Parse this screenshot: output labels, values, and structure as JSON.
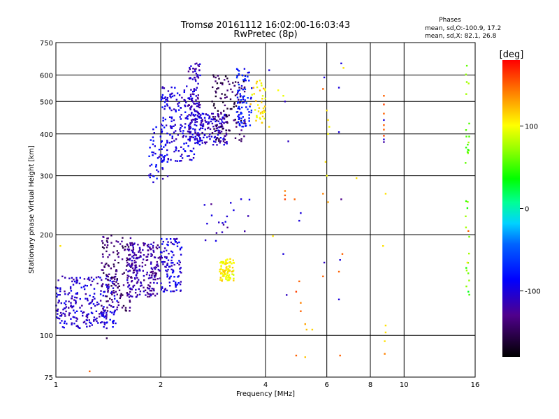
{
  "chart_data": {
    "type": "scatter",
    "title": "Tromsø 20161112 16:02:00-16:03:43",
    "subtitle": "RwPretec (8p)",
    "stats": {
      "heading": "Phases",
      "line1": "mean, sd,O:-100.9, 17.2",
      "line2": "mean, sd,X:  82.1, 26.8"
    },
    "xlabel": "Frequency [MHz]",
    "ylabel": "Stationary phase Virtual Height [km]",
    "x_scale": "log",
    "y_scale": "log",
    "xlim": [
      1,
      16
    ],
    "ylim": [
      75,
      750
    ],
    "x_ticks": [
      1,
      2,
      4,
      6,
      8,
      10,
      16
    ],
    "x_tick_labels": [
      "1",
      "2",
      "4",
      "6",
      "8",
      "10",
      "16"
    ],
    "y_ticks": [
      75,
      100,
      200,
      300,
      400,
      500,
      600,
      750
    ],
    "y_tick_labels": [
      "75",
      "100",
      "200",
      "300",
      "400",
      "500",
      "600",
      "750"
    ],
    "grid": true,
    "colorbar": {
      "label": "[deg]",
      "min": -180,
      "max": 180,
      "ticks": [
        100,
        0,
        -100
      ],
      "tick_labels": [
        "100",
        "0",
        "-100"
      ]
    },
    "clusters": [
      {
        "x": [
          1.0,
          1.5
        ],
        "y": [
          105,
          150
        ],
        "phase": -105,
        "n": 260
      },
      {
        "x": [
          1.35,
          1.65
        ],
        "y": [
          118,
          200
        ],
        "phase": -140,
        "n": 140
      },
      {
        "x": [
          1.6,
          2.0
        ],
        "y": [
          130,
          190
        ],
        "phase": -120,
        "n": 230
      },
      {
        "x": [
          2.0,
          2.3
        ],
        "y": [
          135,
          195
        ],
        "phase": -100,
        "n": 110
      },
      {
        "x": [
          1.85,
          2.1
        ],
        "y": [
          285,
          420
        ],
        "phase": -95,
        "n": 50
      },
      {
        "x": [
          2.0,
          2.5
        ],
        "y": [
          330,
          560
        ],
        "phase": -100,
        "n": 180
      },
      {
        "x": [
          2.4,
          2.6
        ],
        "y": [
          380,
          650
        ],
        "phase": -110,
        "n": 110
      },
      {
        "x": [
          2.5,
          3.1
        ],
        "y": [
          370,
          460
        ],
        "phase": -105,
        "n": 140
      },
      {
        "x": [
          2.8,
          3.5
        ],
        "y": [
          380,
          600
        ],
        "phase": -150,
        "n": 120
      },
      {
        "x": [
          3.3,
          3.65
        ],
        "y": [
          420,
          630
        ],
        "phase": -80,
        "n": 80
      },
      {
        "x": [
          3.6,
          4.0
        ],
        "y": [
          430,
          580
        ],
        "phase": 110,
        "n": 40
      },
      {
        "x": [
          2.95,
          3.25
        ],
        "y": [
          145,
          170
        ],
        "phase": 105,
        "n": 90
      },
      {
        "x": [
          2.65,
          3.6
        ],
        "y": [
          190,
          260
        ],
        "phase": -110,
        "n": 20
      },
      {
        "x": [
          15.0,
          15.4
        ],
        "y": [
          130,
          640
        ],
        "phase": 60,
        "n": 30
      }
    ],
    "points": [
      {
        "x": 1.25,
        "y": 78,
        "phase": 150
      },
      {
        "x": 1.03,
        "y": 185,
        "phase": 110
      },
      {
        "x": 1.4,
        "y": 98,
        "phase": -150
      },
      {
        "x": 4.1,
        "y": 620,
        "phase": -100
      },
      {
        "x": 4.55,
        "y": 500,
        "phase": -110
      },
      {
        "x": 4.35,
        "y": 540,
        "phase": 100
      },
      {
        "x": 4.5,
        "y": 520,
        "phase": 95
      },
      {
        "x": 4.1,
        "y": 420,
        "phase": 110
      },
      {
        "x": 4.65,
        "y": 380,
        "phase": -110
      },
      {
        "x": 4.55,
        "y": 262,
        "phase": 150
      },
      {
        "x": 4.55,
        "y": 270,
        "phase": 140
      },
      {
        "x": 4.55,
        "y": 255,
        "phase": 160
      },
      {
        "x": 4.2,
        "y": 198,
        "phase": 110
      },
      {
        "x": 4.5,
        "y": 175,
        "phase": -100
      },
      {
        "x": 4.6,
        "y": 132,
        "phase": -110
      },
      {
        "x": 4.85,
        "y": 255,
        "phase": 150
      },
      {
        "x": 5.0,
        "y": 220,
        "phase": -100
      },
      {
        "x": 5.05,
        "y": 232,
        "phase": -100
      },
      {
        "x": 5.0,
        "y": 145,
        "phase": 150
      },
      {
        "x": 4.9,
        "y": 135,
        "phase": 160
      },
      {
        "x": 5.05,
        "y": 125,
        "phase": 140
      },
      {
        "x": 5.05,
        "y": 118,
        "phase": 150
      },
      {
        "x": 5.2,
        "y": 108,
        "phase": 130
      },
      {
        "x": 5.25,
        "y": 104,
        "phase": 120
      },
      {
        "x": 5.45,
        "y": 104,
        "phase": 115
      },
      {
        "x": 4.9,
        "y": 87,
        "phase": 150
      },
      {
        "x": 5.2,
        "y": 86,
        "phase": 120
      },
      {
        "x": 5.9,
        "y": 590,
        "phase": -100
      },
      {
        "x": 5.85,
        "y": 545,
        "phase": 150
      },
      {
        "x": 6.0,
        "y": 470,
        "phase": 110
      },
      {
        "x": 6.05,
        "y": 440,
        "phase": 110
      },
      {
        "x": 6.1,
        "y": 420,
        "phase": 100
      },
      {
        "x": 6.05,
        "y": 400,
        "phase": 100
      },
      {
        "x": 6.0,
        "y": 300,
        "phase": 100
      },
      {
        "x": 5.95,
        "y": 330,
        "phase": 110
      },
      {
        "x": 5.85,
        "y": 265,
        "phase": 140
      },
      {
        "x": 6.05,
        "y": 250,
        "phase": 130
      },
      {
        "x": 5.9,
        "y": 165,
        "phase": -110
      },
      {
        "x": 5.85,
        "y": 150,
        "phase": 150
      },
      {
        "x": 6.6,
        "y": 650,
        "phase": -100
      },
      {
        "x": 6.7,
        "y": 630,
        "phase": 110
      },
      {
        "x": 6.5,
        "y": 550,
        "phase": -100
      },
      {
        "x": 6.5,
        "y": 405,
        "phase": -100
      },
      {
        "x": 6.6,
        "y": 255,
        "phase": -130
      },
      {
        "x": 6.65,
        "y": 175,
        "phase": 150
      },
      {
        "x": 6.55,
        "y": 168,
        "phase": -100
      },
      {
        "x": 6.5,
        "y": 155,
        "phase": 150
      },
      {
        "x": 6.5,
        "y": 128,
        "phase": -100
      },
      {
        "x": 6.55,
        "y": 87,
        "phase": 150
      },
      {
        "x": 7.3,
        "y": 295,
        "phase": 110
      },
      {
        "x": 8.75,
        "y": 520,
        "phase": 150
      },
      {
        "x": 8.75,
        "y": 490,
        "phase": 160
      },
      {
        "x": 8.75,
        "y": 460,
        "phase": 150
      },
      {
        "x": 8.75,
        "y": 440,
        "phase": -100
      },
      {
        "x": 8.75,
        "y": 425,
        "phase": 150
      },
      {
        "x": 8.75,
        "y": 412,
        "phase": 150
      },
      {
        "x": 8.75,
        "y": 395,
        "phase": 160
      },
      {
        "x": 8.75,
        "y": 385,
        "phase": -100
      },
      {
        "x": 8.75,
        "y": 378,
        "phase": -120
      },
      {
        "x": 8.85,
        "y": 265,
        "phase": 110
      },
      {
        "x": 8.7,
        "y": 185,
        "phase": 110
      },
      {
        "x": 8.85,
        "y": 107,
        "phase": 110
      },
      {
        "x": 8.85,
        "y": 102,
        "phase": 110
      },
      {
        "x": 8.8,
        "y": 96,
        "phase": 110
      },
      {
        "x": 8.8,
        "y": 88,
        "phase": 140
      },
      {
        "x": 15.3,
        "y": 205,
        "phase": 150
      },
      {
        "x": 15.2,
        "y": 240,
        "phase": 40
      },
      {
        "x": 15.2,
        "y": 165,
        "phase": 110
      },
      {
        "x": 15.3,
        "y": 135,
        "phase": 30
      }
    ]
  }
}
